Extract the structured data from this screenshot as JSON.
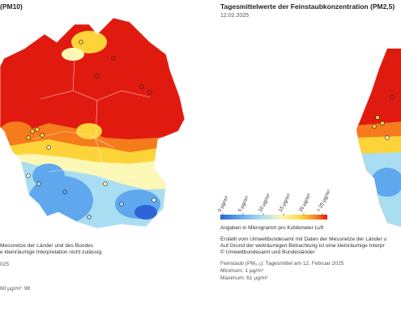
{
  "left_panel": {
    "title": "(PM10)",
    "notes": [
      "Messnetze der Länder und des Bundes",
      "e kleinräumige Interpretation nicht zulässig."
    ],
    "date_fragment": "025",
    "max_fragment": "60 µg/m³: 98"
  },
  "right_panel": {
    "title": "Tagesmittelwerte der Feinstaubkonzentration (PM2,5)",
    "date": "12.02.2025",
    "scale": {
      "labels": [
        "0 µg/m³",
        "5 µg/m³",
        "10 µg/m³",
        "15 µg/m³",
        "20 µg/m³",
        "> 25 µg/m³"
      ],
      "colors": [
        "#2f64d9",
        "#5fa8ee",
        "#a9ddf2",
        "#fbf7b4",
        "#fdd33a",
        "#f57b1c",
        "#e11a10"
      ],
      "unit_note": "Angaben in Mikrogramm pro Kubikmeter Luft"
    },
    "notes": [
      "Erstellt vom Umweltbundesamt mit Daten der Messnetze der Länder u",
      "Auf Grund der weiträumigen Betrachtung ist eine kleinräumige Interpr",
      "© Umweltbundesamt und Bundesländer"
    ],
    "stats": {
      "line1": "Feinstaub (PM₂,₅): Tagesmittel am 12. Februar 2025",
      "minimum": "Minimum: 1 µg/m³",
      "maximum": "Maximum: 61 µg/m³"
    }
  }
}
